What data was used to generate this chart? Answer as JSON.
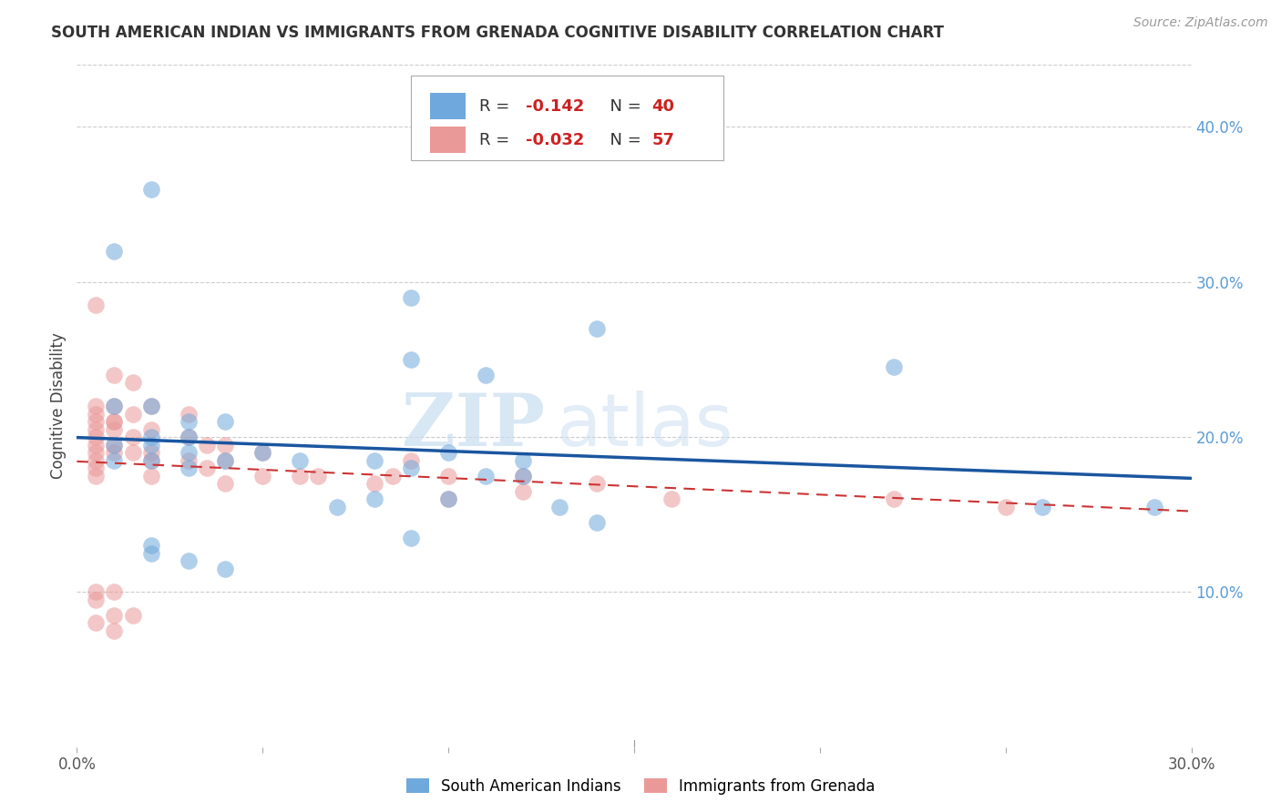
{
  "title": "SOUTH AMERICAN INDIAN VS IMMIGRANTS FROM GRENADA COGNITIVE DISABILITY CORRELATION CHART",
  "source": "Source: ZipAtlas.com",
  "ylabel": "Cognitive Disability",
  "xlim": [
    0.0,
    0.3
  ],
  "ylim": [
    0.0,
    0.44
  ],
  "blue_R": -0.142,
  "blue_N": 40,
  "pink_R": -0.032,
  "pink_N": 57,
  "blue_color": "#6fa8dc",
  "pink_color": "#ea9999",
  "blue_line_color": "#1a56a0",
  "pink_line_color": "#cc3333",
  "legend_label_blue": "South American Indians",
  "legend_label_pink": "Immigrants from Grenada",
  "blue_scatter_x": [
    0.02,
    0.01,
    0.09,
    0.14,
    0.09,
    0.11,
    0.22,
    0.01,
    0.02,
    0.03,
    0.04,
    0.02,
    0.03,
    0.02,
    0.01,
    0.03,
    0.02,
    0.01,
    0.04,
    0.05,
    0.06,
    0.03,
    0.08,
    0.09,
    0.1,
    0.12,
    0.11,
    0.08,
    0.07,
    0.12,
    0.1,
    0.13,
    0.14,
    0.09,
    0.26,
    0.29,
    0.02,
    0.02,
    0.03,
    0.04
  ],
  "blue_scatter_y": [
    0.36,
    0.32,
    0.29,
    0.27,
    0.25,
    0.24,
    0.245,
    0.22,
    0.22,
    0.21,
    0.21,
    0.2,
    0.2,
    0.195,
    0.195,
    0.19,
    0.185,
    0.185,
    0.185,
    0.19,
    0.185,
    0.18,
    0.185,
    0.18,
    0.19,
    0.185,
    0.175,
    0.16,
    0.155,
    0.175,
    0.16,
    0.155,
    0.145,
    0.135,
    0.155,
    0.155,
    0.13,
    0.125,
    0.12,
    0.115
  ],
  "pink_scatter_x": [
    0.005,
    0.005,
    0.005,
    0.005,
    0.005,
    0.005,
    0.005,
    0.005,
    0.005,
    0.005,
    0.005,
    0.01,
    0.01,
    0.01,
    0.01,
    0.01,
    0.01,
    0.01,
    0.015,
    0.015,
    0.015,
    0.015,
    0.02,
    0.02,
    0.02,
    0.02,
    0.02,
    0.03,
    0.03,
    0.03,
    0.035,
    0.035,
    0.04,
    0.04,
    0.04,
    0.05,
    0.05,
    0.06,
    0.065,
    0.08,
    0.085,
    0.09,
    0.1,
    0.1,
    0.12,
    0.12,
    0.14,
    0.16,
    0.22,
    0.25,
    0.005,
    0.005,
    0.005,
    0.01,
    0.01,
    0.01,
    0.015
  ],
  "pink_scatter_y": [
    0.285,
    0.22,
    0.215,
    0.21,
    0.205,
    0.2,
    0.195,
    0.19,
    0.185,
    0.18,
    0.175,
    0.24,
    0.22,
    0.21,
    0.21,
    0.205,
    0.195,
    0.19,
    0.235,
    0.215,
    0.2,
    0.19,
    0.22,
    0.205,
    0.19,
    0.185,
    0.175,
    0.215,
    0.2,
    0.185,
    0.195,
    0.18,
    0.195,
    0.185,
    0.17,
    0.19,
    0.175,
    0.175,
    0.175,
    0.17,
    0.175,
    0.185,
    0.175,
    0.16,
    0.175,
    0.165,
    0.17,
    0.16,
    0.16,
    0.155,
    0.1,
    0.095,
    0.08,
    0.1,
    0.085,
    0.075,
    0.085
  ],
  "watermark_zip": "ZIP",
  "watermark_atlas": "atlas",
  "background_color": "#ffffff",
  "grid_color": "#cccccc",
  "ytick_labels": [
    "",
    "10.0%",
    "20.0%",
    "30.0%",
    "40.0%"
  ],
  "ytick_vals": [
    0.0,
    0.1,
    0.2,
    0.3,
    0.4
  ]
}
